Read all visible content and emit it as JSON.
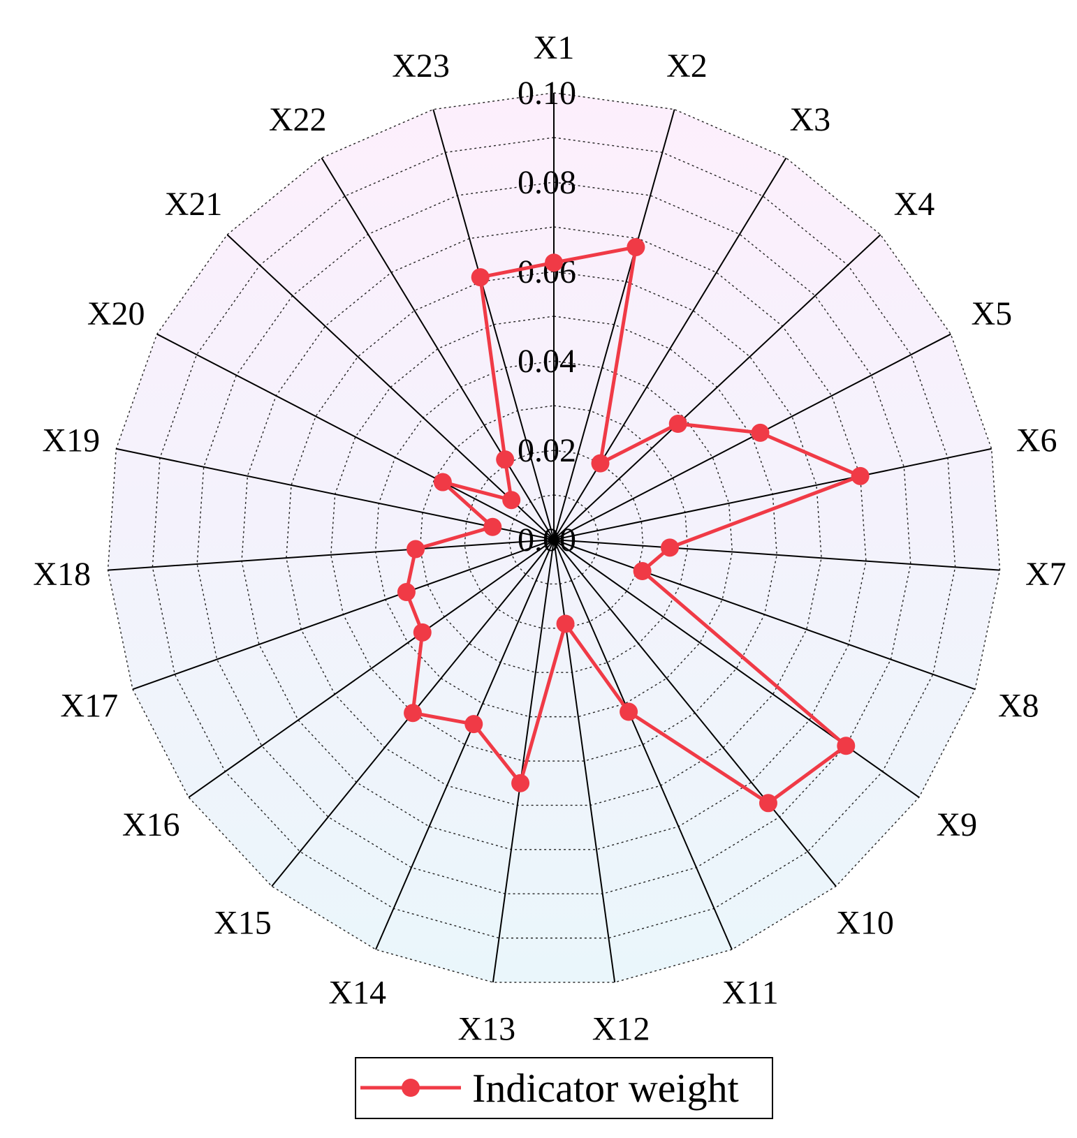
{
  "chart_data": {
    "type": "radar",
    "categories": [
      "X1",
      "X2",
      "X3",
      "X4",
      "X5",
      "X6",
      "X7",
      "X8",
      "X9",
      "X10",
      "X11",
      "X12",
      "X13",
      "X14",
      "X15",
      "X16",
      "X17",
      "X18",
      "X19",
      "X20",
      "X21",
      "X22",
      "X23"
    ],
    "series": [
      {
        "name": "Indicator weight",
        "color": "#f03a46",
        "values": [
          0.062,
          0.068,
          0.02,
          0.038,
          0.052,
          0.07,
          0.026,
          0.021,
          0.08,
          0.076,
          0.042,
          0.019,
          0.055,
          0.045,
          0.05,
          0.036,
          0.035,
          0.031,
          0.014,
          0.028,
          0.013,
          0.021,
          0.061
        ]
      }
    ],
    "r_ticks": [
      "0.00",
      "0.02",
      "0.04",
      "0.06",
      "0.08",
      "0.10"
    ],
    "r_range": [
      0,
      0.1
    ],
    "legend": {
      "label": "Indicator weight",
      "position": "bottom-center"
    },
    "background_gradient": {
      "top": "#fdeffc",
      "bottom": "#eaf6fb"
    },
    "grid": true
  }
}
